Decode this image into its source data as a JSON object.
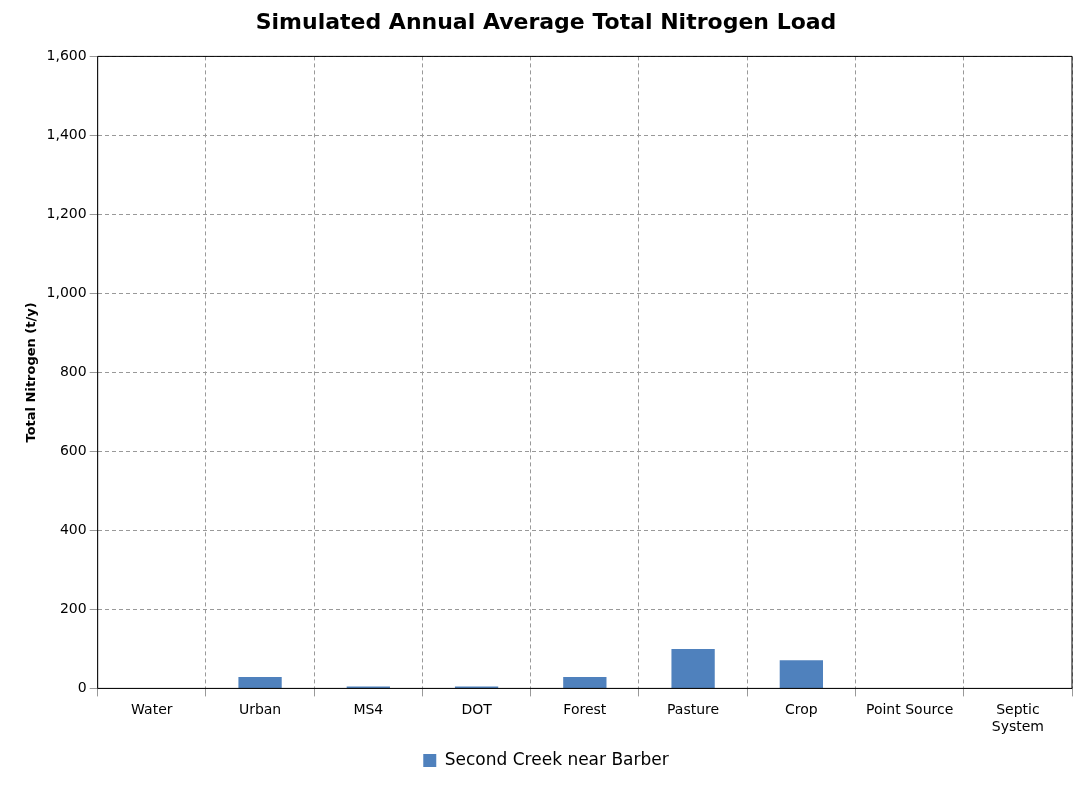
{
  "chart_data": {
    "type": "bar",
    "title": "Simulated Annual Average Total Nitrogen Load",
    "ylabel": "Total Nitrogen (t/y)",
    "categories": [
      "Water",
      "Urban",
      "MS4",
      "DOT",
      "Forest",
      "Pasture",
      "Crop",
      "Point Source",
      "Septic System"
    ],
    "series": [
      {
        "name": "Second Creek near Barber",
        "color": "#4f81bd",
        "values": [
          0,
          29,
          5,
          5,
          29,
          100,
          71,
          0,
          0
        ]
      }
    ],
    "ylim": [
      0,
      1600
    ],
    "yticks": [
      0,
      200,
      400,
      600,
      800,
      {
        "value": 1000,
        "label": "1,000"
      },
      {
        "value": 1200,
        "label": "1,200"
      },
      {
        "value": 1400,
        "label": "1,400"
      },
      {
        "value": 1600,
        "label": "1,600"
      }
    ],
    "grid": true,
    "legend": "bottom"
  }
}
